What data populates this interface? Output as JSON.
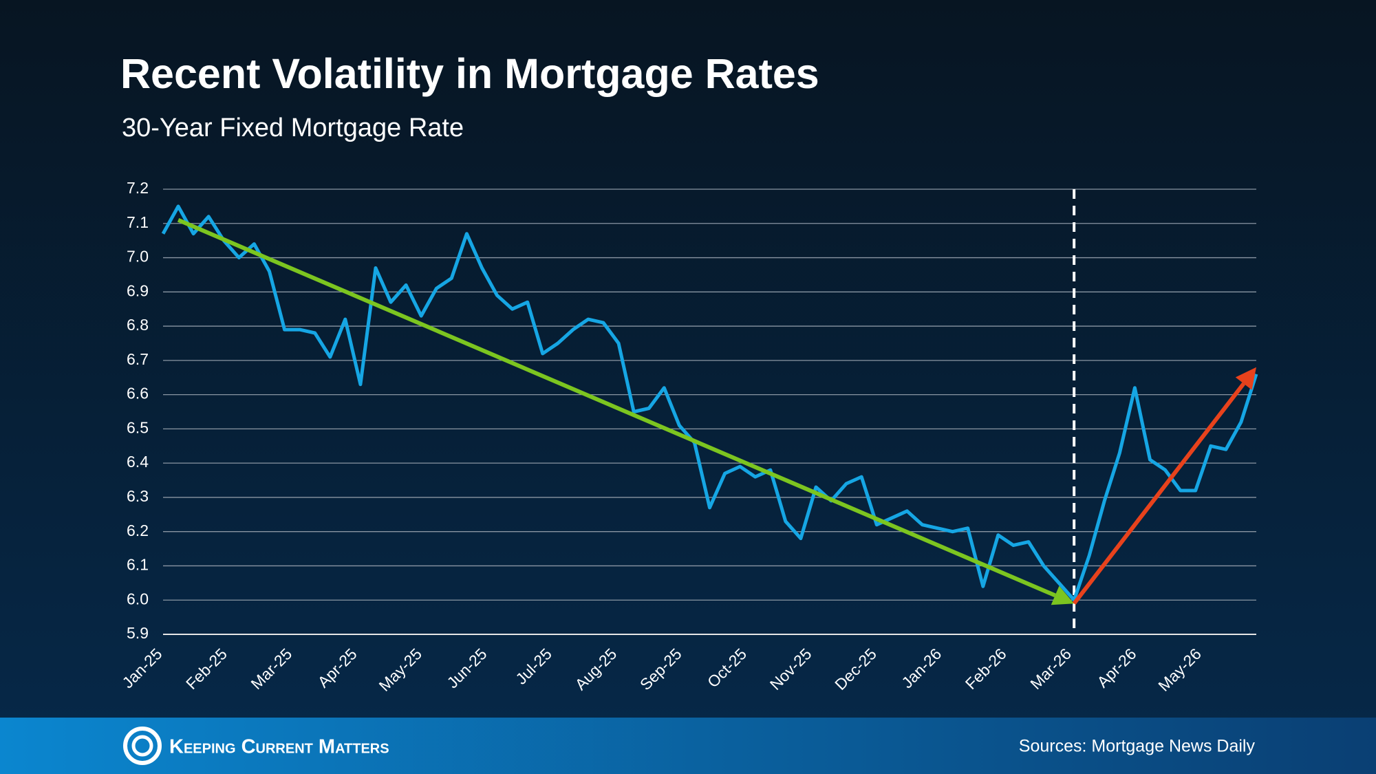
{
  "chart_data": {
    "type": "line",
    "title": "Recent Volatility in Mortgage Rates",
    "subtitle": "30-Year Fixed Mortgage Rate",
    "xticks": [
      "Jan-25",
      "Feb-25",
      "Mar-25",
      "Apr-25",
      "May-25",
      "Jun-25",
      "Jul-25",
      "Aug-25",
      "Sep-25",
      "Oct-25",
      "Nov-25",
      "Dec-25",
      "Jan-26",
      "Feb-26",
      "Mar-26",
      "Apr-26",
      "May-26"
    ],
    "series": [
      {
        "name": "30-Year Fixed Mortgage Rate",
        "color": "#16a6e4",
        "values": [
          7.07,
          7.15,
          7.07,
          7.12,
          7.05,
          7.0,
          7.04,
          6.96,
          6.79,
          6.79,
          6.78,
          6.71,
          6.82,
          6.63,
          6.97,
          6.87,
          6.92,
          6.83,
          6.91,
          6.94,
          7.07,
          6.97,
          6.89,
          6.85,
          6.87,
          6.72,
          6.75,
          6.79,
          6.82,
          6.81,
          6.75,
          6.55,
          6.56,
          6.62,
          6.51,
          6.46,
          6.27,
          6.37,
          6.39,
          6.36,
          6.38,
          6.23,
          6.18,
          6.33,
          6.29,
          6.34,
          6.36,
          6.22,
          6.24,
          6.26,
          6.22,
          6.21,
          6.2,
          6.21,
          6.04,
          6.19,
          6.16,
          6.17,
          6.1,
          6.05,
          6.0,
          6.13,
          6.29,
          6.43,
          6.62,
          6.41,
          6.38,
          6.32,
          6.32,
          6.45,
          6.44,
          6.52,
          6.66
        ]
      }
    ],
    "ylim": [
      5.9,
      7.2
    ],
    "yticks": [
      {
        "value": 5.9,
        "label": "5.9"
      },
      {
        "value": 6.0,
        "label": "6.0"
      },
      {
        "value": 6.1,
        "label": "6.1"
      },
      {
        "value": 6.2,
        "label": "6.2"
      },
      {
        "value": 6.3,
        "label": "6.3"
      },
      {
        "value": 6.4,
        "label": "6.4"
      },
      {
        "value": 6.5,
        "label": "6.5"
      },
      {
        "value": 6.6,
        "label": "6.6"
      },
      {
        "value": 6.7,
        "label": "6.7"
      },
      {
        "value": 6.8,
        "label": "6.8"
      },
      {
        "value": 6.9,
        "label": "6.9"
      },
      {
        "value": 7.0,
        "label": "7.0"
      },
      {
        "value": 7.1,
        "label": "7.1"
      },
      {
        "value": 7.2,
        "label": "7.2"
      }
    ],
    "grid": true,
    "vline_index": 60,
    "trend_lines": [
      {
        "color": "#7cc520",
        "start": [
          1,
          7.11
        ],
        "end": [
          60,
          5.99
        ]
      },
      {
        "color": "#e8421c",
        "start": [
          60,
          5.99
        ],
        "end": [
          72,
          6.68
        ]
      }
    ]
  },
  "footer": {
    "brand": "Keeping Current Matters",
    "source": "Sources: Mortgage News Daily"
  }
}
